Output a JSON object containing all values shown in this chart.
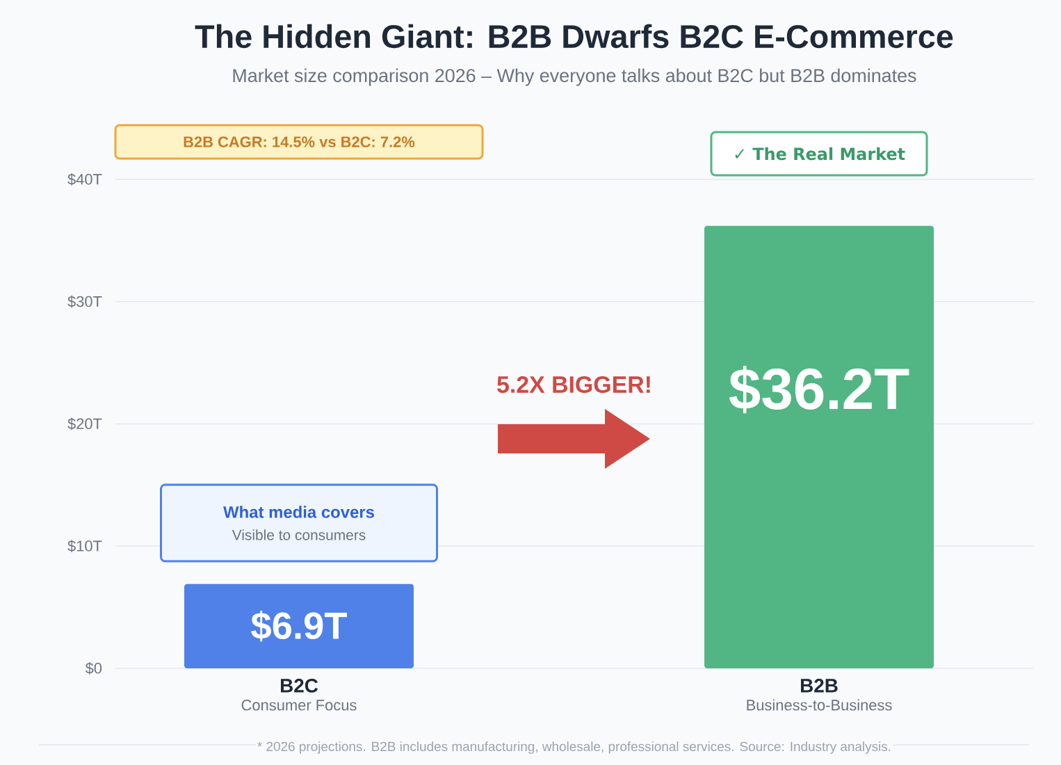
{
  "chart_data": {
    "type": "bar",
    "title": "The Hidden Giant: B2B Dwarfs B2C E-Commerce",
    "subtitle": "Market size comparison 2026 – Why everyone talks about B2C but B2B dominates",
    "categories": [
      "B2C",
      "B2B"
    ],
    "values": [
      6.9,
      36.2
    ],
    "colors": [
      "#4f81e8",
      "#52b584"
    ],
    "value_labels": [
      "$6.9T",
      "$36.2T"
    ],
    "ylim": [
      0,
      40
    ],
    "yticks": [
      {
        "value": 0,
        "label": "$0"
      },
      {
        "value": 10,
        "label": "$10T"
      },
      {
        "value": 20,
        "label": "$20T"
      },
      {
        "value": 30,
        "label": "$30T"
      },
      {
        "value": 40,
        "label": "$40T"
      }
    ],
    "grid": "y",
    "annotations": [
      "B2B CAGR: 14.5% vs B2C: 7.2%",
      "✓ The Real Market",
      "5.2X BIGGER!",
      "What media covers",
      "Visible to consumers",
      "Consumer Focus",
      "Business-to-Business",
      "* 2026 projections. B2B includes manufacturing, wholesale, professional services. Source: Industry analysis."
    ]
  }
}
